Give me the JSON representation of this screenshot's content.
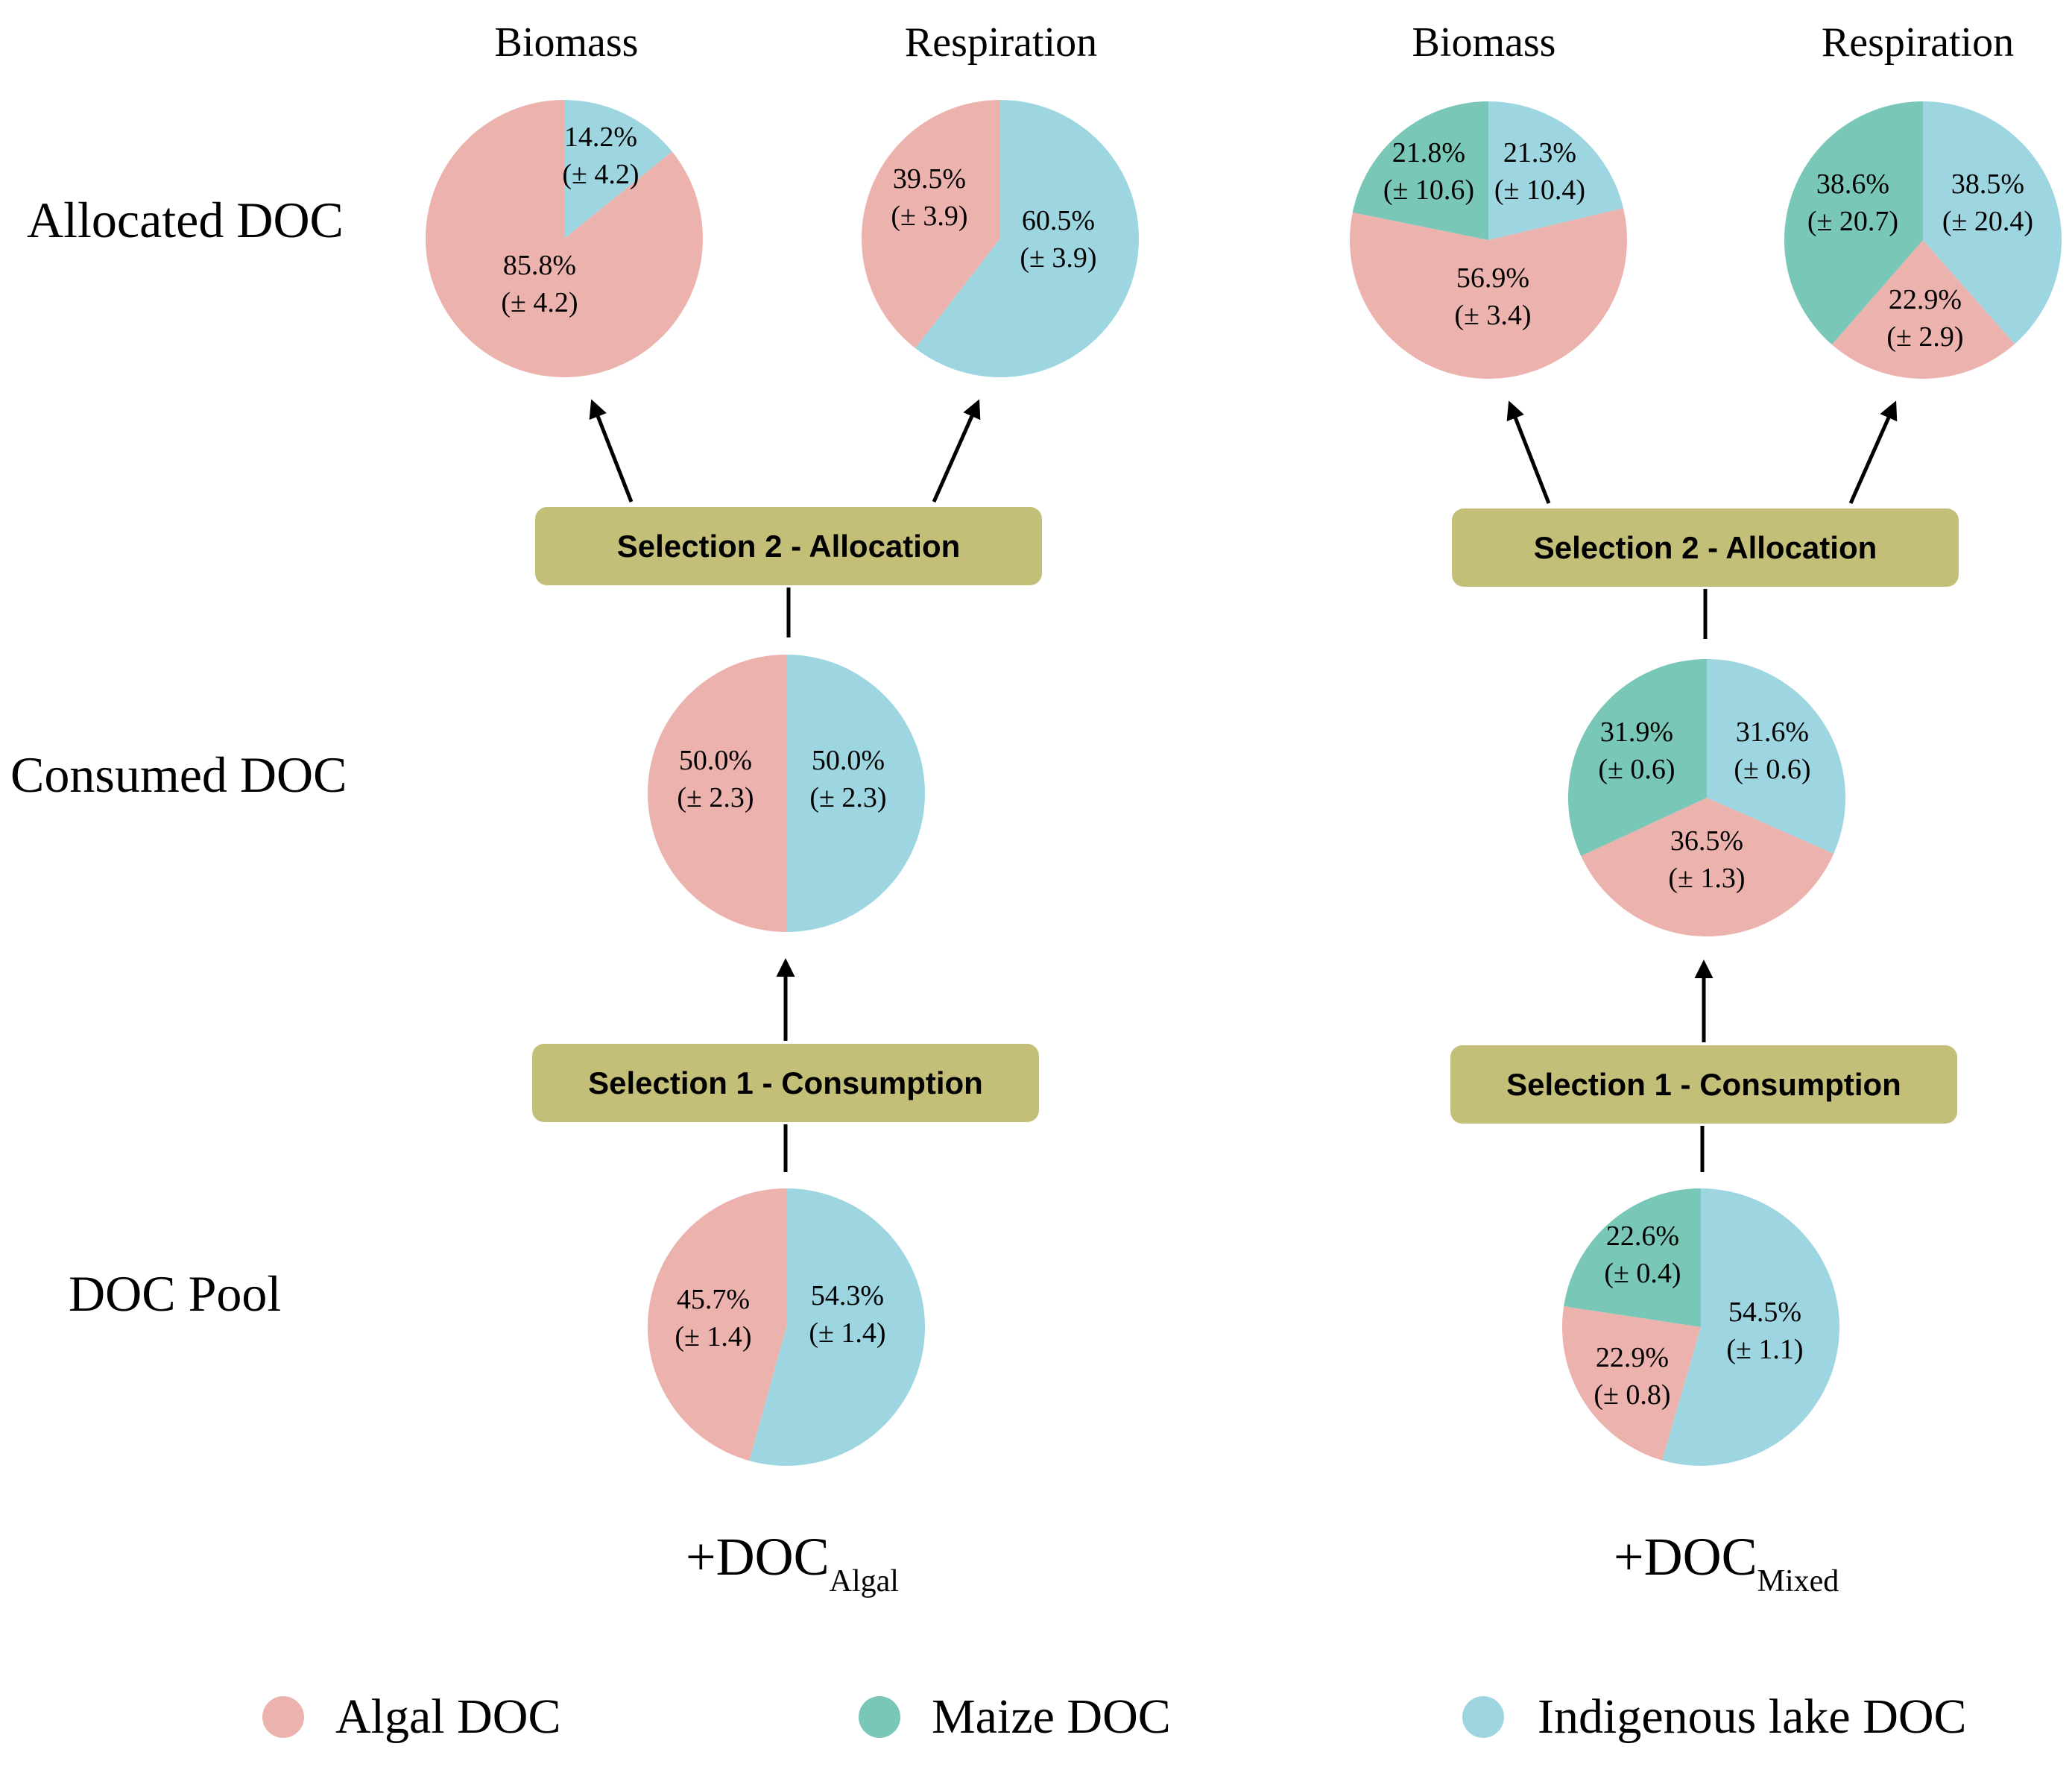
{
  "colors": {
    "algal": "#ecb3ae",
    "maize": "#79c7b7",
    "indigenous": "#9dd6e1",
    "box": "#c3bf79"
  },
  "row_labels": {
    "allocated": "Allocated DOC",
    "consumed": "Consumed DOC",
    "pool": "DOC Pool"
  },
  "selection_labels": {
    "allocation": "Selection 2 - Allocation",
    "consumption": "Selection 1 - Consumption"
  },
  "column_titles": {
    "biomass": "Biomass",
    "respiration": "Respiration"
  },
  "treatments": {
    "algal": {
      "prefix": "+DOC",
      "subscript": "Algal"
    },
    "mixed": {
      "prefix": "+DOC",
      "subscript": "Mixed"
    }
  },
  "legend": [
    {
      "key": "algal",
      "label": "Algal DOC"
    },
    {
      "key": "maize",
      "label": "Maize DOC"
    },
    {
      "key": "indigenous",
      "label": "Indigenous lake DOC"
    }
  ],
  "chart_data": [
    {
      "id": "algal-biomass",
      "type": "pie",
      "treatment": "+DOC Algal",
      "level": "Allocated DOC",
      "title": "Biomass",
      "slices": [
        {
          "source": "indigenous",
          "value": 14.2,
          "label": "14.2%",
          "error": "(± 4.2)"
        },
        {
          "source": "algal",
          "value": 85.8,
          "label": "85.8%",
          "error": "(± 4.2)"
        }
      ]
    },
    {
      "id": "algal-respiration",
      "type": "pie",
      "treatment": "+DOC Algal",
      "level": "Allocated DOC",
      "title": "Respiration",
      "slices": [
        {
          "source": "indigenous",
          "value": 60.5,
          "label": "60.5%",
          "error": "(± 3.9)"
        },
        {
          "source": "algal",
          "value": 39.5,
          "label": "39.5%",
          "error": "(± 3.9)"
        }
      ]
    },
    {
      "id": "algal-consumed",
      "type": "pie",
      "treatment": "+DOC Algal",
      "level": "Consumed DOC",
      "slices": [
        {
          "source": "indigenous",
          "value": 50.0,
          "label": "50.0%",
          "error": "(± 2.3)"
        },
        {
          "source": "algal",
          "value": 50.0,
          "label": "50.0%",
          "error": "(± 2.3)"
        }
      ]
    },
    {
      "id": "algal-pool",
      "type": "pie",
      "treatment": "+DOC Algal",
      "level": "DOC Pool",
      "slices": [
        {
          "source": "indigenous",
          "value": 54.3,
          "label": "54.3%",
          "error": "(± 1.4)"
        },
        {
          "source": "algal",
          "value": 45.7,
          "label": "45.7%",
          "error": "(± 1.4)"
        }
      ]
    },
    {
      "id": "mixed-biomass",
      "type": "pie",
      "treatment": "+DOC Mixed",
      "level": "Allocated DOC",
      "title": "Biomass",
      "slices": [
        {
          "source": "indigenous",
          "value": 21.3,
          "label": "21.3%",
          "error": "(± 10.4)"
        },
        {
          "source": "algal",
          "value": 56.9,
          "label": "56.9%",
          "error": "(± 3.4)"
        },
        {
          "source": "maize",
          "value": 21.8,
          "label": "21.8%",
          "error": "(± 10.6)"
        }
      ]
    },
    {
      "id": "mixed-respiration",
      "type": "pie",
      "treatment": "+DOC Mixed",
      "level": "Allocated DOC",
      "title": "Respiration",
      "slices": [
        {
          "source": "indigenous",
          "value": 38.5,
          "label": "38.5%",
          "error": "(± 20.4)"
        },
        {
          "source": "algal",
          "value": 22.9,
          "label": "22.9%",
          "error": "(± 2.9)"
        },
        {
          "source": "maize",
          "value": 38.6,
          "label": "38.6%",
          "error": "(± 20.7)"
        }
      ]
    },
    {
      "id": "mixed-consumed",
      "type": "pie",
      "treatment": "+DOC Mixed",
      "level": "Consumed DOC",
      "slices": [
        {
          "source": "indigenous",
          "value": 31.6,
          "label": "31.6%",
          "error": "(± 0.6)"
        },
        {
          "source": "algal",
          "value": 36.5,
          "label": "36.5%",
          "error": "(± 1.3)"
        },
        {
          "source": "maize",
          "value": 31.9,
          "label": "31.9%",
          "error": "(± 0.6)"
        }
      ]
    },
    {
      "id": "mixed-pool",
      "type": "pie",
      "treatment": "+DOC Mixed",
      "level": "DOC Pool",
      "slices": [
        {
          "source": "indigenous",
          "value": 54.5,
          "label": "54.5%",
          "error": "(± 1.1)"
        },
        {
          "source": "algal",
          "value": 22.9,
          "label": "22.9%",
          "error": "(± 0.8)"
        },
        {
          "source": "maize",
          "value": 22.6,
          "label": "22.6%",
          "error": "(± 0.4)"
        }
      ]
    }
  ]
}
